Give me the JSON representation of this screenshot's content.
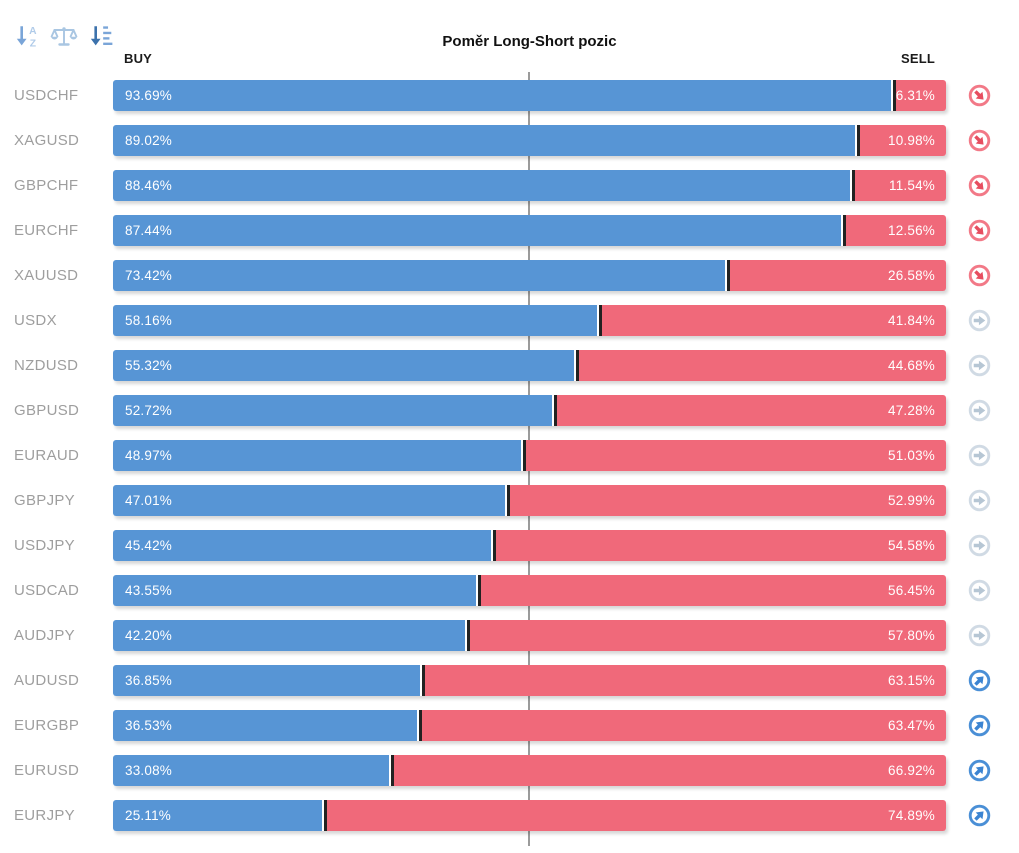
{
  "title": "Poměr Long-Short pozic",
  "headers": {
    "buy": "BUY",
    "sell": "SELL"
  },
  "toolbar_icons": [
    {
      "name": "sort-alphabetical-icon"
    },
    {
      "name": "balance-scale-icon"
    },
    {
      "name": "sort-amount-icon"
    }
  ],
  "signal_icons": {
    "sell": "arrow-down-right-circle-icon",
    "neutral": "arrow-right-circle-icon",
    "buy": "arrow-up-right-circle-icon"
  },
  "colors": {
    "buy_bar": "#5795d5",
    "sell_bar": "#f0697a",
    "midline": "#9b9b9b",
    "segment_divider": "#222222",
    "symbol_text": "#9e9e9e",
    "signal_sell": {
      "ring": "#f27987",
      "arrow": "#e74e60"
    },
    "signal_neutral": {
      "ring": "#d0dae4",
      "arrow": "#b6c6d4"
    },
    "signal_buy": {
      "ring": "#4a8fd6",
      "arrow": "#3b84d2"
    }
  },
  "chart_data": {
    "type": "bar",
    "orientation": "horizontal-stacked",
    "title": "Poměr Long-Short pozic",
    "series_labels": [
      "BUY",
      "SELL"
    ],
    "x_range": [
      0,
      100
    ],
    "midline_at": 50,
    "grid": false,
    "rows": [
      {
        "symbol": "USDCHF",
        "buy": 93.69,
        "sell": 6.31,
        "buy_label": "93.69%",
        "sell_label": "6.31%",
        "signal": "sell"
      },
      {
        "symbol": "XAGUSD",
        "buy": 89.02,
        "sell": 10.98,
        "buy_label": "89.02%",
        "sell_label": "10.98%",
        "signal": "sell"
      },
      {
        "symbol": "GBPCHF",
        "buy": 88.46,
        "sell": 11.54,
        "buy_label": "88.46%",
        "sell_label": "11.54%",
        "signal": "sell"
      },
      {
        "symbol": "EURCHF",
        "buy": 87.44,
        "sell": 12.56,
        "buy_label": "87.44%",
        "sell_label": "12.56%",
        "signal": "sell"
      },
      {
        "symbol": "XAUUSD",
        "buy": 73.42,
        "sell": 26.58,
        "buy_label": "73.42%",
        "sell_label": "26.58%",
        "signal": "sell"
      },
      {
        "symbol": "USDX",
        "buy": 58.16,
        "sell": 41.84,
        "buy_label": "58.16%",
        "sell_label": "41.84%",
        "signal": "neutral"
      },
      {
        "symbol": "NZDUSD",
        "buy": 55.32,
        "sell": 44.68,
        "buy_label": "55.32%",
        "sell_label": "44.68%",
        "signal": "neutral"
      },
      {
        "symbol": "GBPUSD",
        "buy": 52.72,
        "sell": 47.28,
        "buy_label": "52.72%",
        "sell_label": "47.28%",
        "signal": "neutral"
      },
      {
        "symbol": "EURAUD",
        "buy": 48.97,
        "sell": 51.03,
        "buy_label": "48.97%",
        "sell_label": "51.03%",
        "signal": "neutral"
      },
      {
        "symbol": "GBPJPY",
        "buy": 47.01,
        "sell": 52.99,
        "buy_label": "47.01%",
        "sell_label": "52.99%",
        "signal": "neutral"
      },
      {
        "symbol": "USDJPY",
        "buy": 45.42,
        "sell": 54.58,
        "buy_label": "45.42%",
        "sell_label": "54.58%",
        "signal": "neutral"
      },
      {
        "symbol": "USDCAD",
        "buy": 43.55,
        "sell": 56.45,
        "buy_label": "43.55%",
        "sell_label": "56.45%",
        "signal": "neutral"
      },
      {
        "symbol": "AUDJPY",
        "buy": 42.2,
        "sell": 57.8,
        "buy_label": "42.20%",
        "sell_label": "57.80%",
        "signal": "neutral"
      },
      {
        "symbol": "AUDUSD",
        "buy": 36.85,
        "sell": 63.15,
        "buy_label": "36.85%",
        "sell_label": "63.15%",
        "signal": "buy"
      },
      {
        "symbol": "EURGBP",
        "buy": 36.53,
        "sell": 63.47,
        "buy_label": "36.53%",
        "sell_label": "63.47%",
        "signal": "buy"
      },
      {
        "symbol": "EURUSD",
        "buy": 33.08,
        "sell": 66.92,
        "buy_label": "33.08%",
        "sell_label": "66.92%",
        "signal": "buy"
      },
      {
        "symbol": "EURJPY",
        "buy": 25.11,
        "sell": 74.89,
        "buy_label": "25.11%",
        "sell_label": "74.89%",
        "signal": "buy"
      }
    ]
  }
}
